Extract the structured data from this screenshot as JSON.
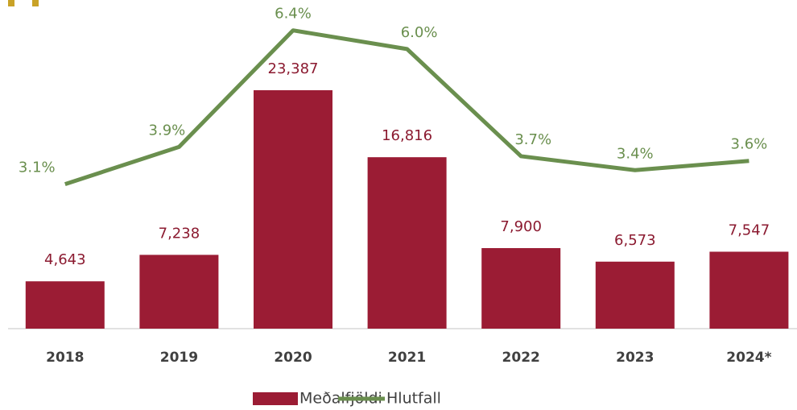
{
  "chart_data": {
    "type": "bar-line",
    "categories": [
      "2018",
      "2019",
      "2020",
      "2021",
      "2022",
      "2023",
      "2024*"
    ],
    "series": [
      {
        "name": "Meðalfjöldi",
        "color": "#9b1c34",
        "values": [
          4643,
          7238,
          23387,
          16816,
          7900,
          6573,
          7547
        ],
        "value_labels": [
          "4,643",
          "7,238",
          "23,387",
          "16,816",
          "7,900",
          "6,573",
          "7,547"
        ]
      },
      {
        "name": "Hlutfall",
        "color": "#6a8f4e",
        "axis": "y2",
        "values": [
          3.1,
          3.9,
          6.4,
          6.0,
          3.7,
          3.4,
          3.6
        ],
        "value_labels": [
          "3.1%",
          "3.9%",
          "6.4%",
          "6.0%",
          "3.7%",
          "3.4%",
          "3.6%"
        ]
      }
    ],
    "ylim": [
      0,
      32000
    ],
    "y2lim": [
      0,
      7
    ],
    "legend": "bottom"
  }
}
